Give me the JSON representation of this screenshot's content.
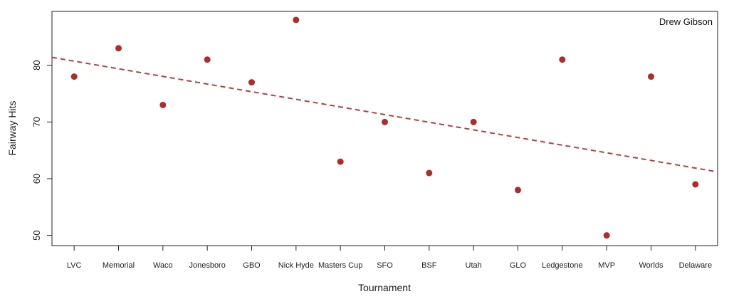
{
  "chart_data": {
    "type": "scatter",
    "title": "",
    "xlabel": "Tournament",
    "ylabel": "Fairway Hits",
    "annotation": "Drew Gibson",
    "categories": [
      "LVC",
      "Memorial",
      "Waco",
      "Jonesboro",
      "GBO",
      "Nick Hyde",
      "Masters Cup",
      "SFO",
      "BSF",
      "Utah",
      "GLO",
      "Ledgestone",
      "MVP",
      "Worlds",
      "Delaware"
    ],
    "values": [
      78,
      83,
      73,
      81,
      77,
      88,
      63,
      70,
      61,
      70,
      58,
      81,
      50,
      78,
      59
    ],
    "ylim": [
      48.2,
      89.5
    ],
    "yticks": [
      50,
      60,
      70,
      80
    ],
    "trendline": {
      "style": "dashed",
      "start": [
        0.5,
        81.4
      ],
      "end": [
        15.5,
        61.2
      ]
    },
    "point_color": "#b22a2a",
    "trend_color": "#b5403a",
    "grid": false,
    "legend": "none"
  }
}
